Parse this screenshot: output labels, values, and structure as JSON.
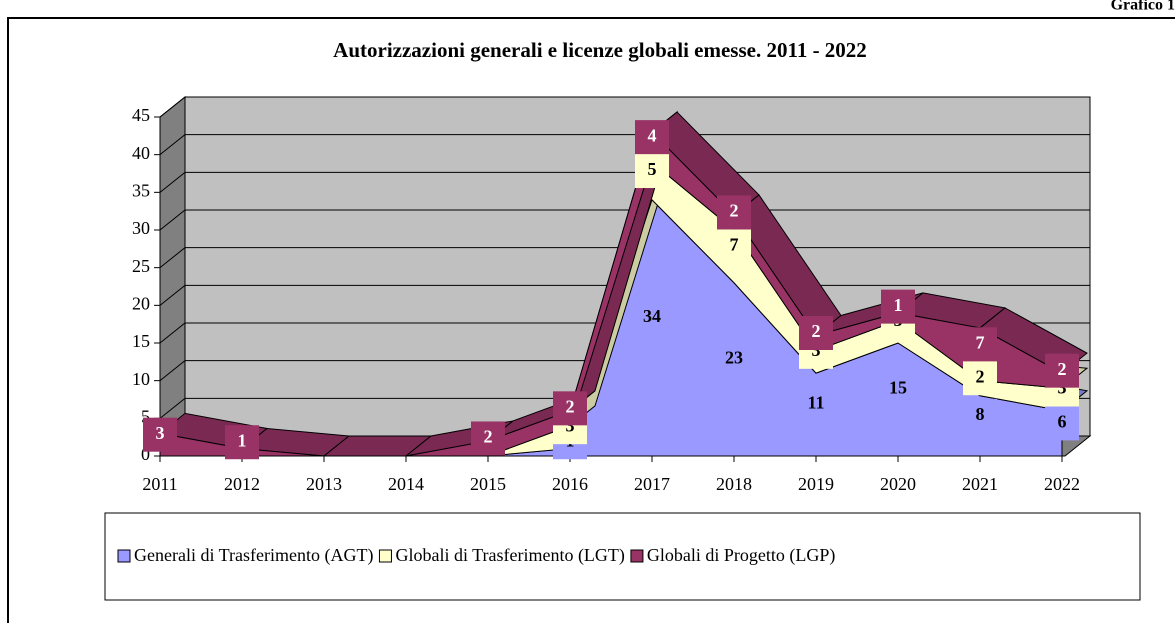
{
  "chart_data": {
    "type": "stacked_area_3d",
    "corner_label": "Grafico 1",
    "title": "Autorizzazioni generali e licenze globali emesse. 2011 - 2022",
    "categories": [
      "2011",
      "2012",
      "2013",
      "2014",
      "2015",
      "2016",
      "2017",
      "2018",
      "2019",
      "2020",
      "2021",
      "2022"
    ],
    "series": [
      {
        "name": "Generali di Trasferimento (AGT)",
        "color": "#9999ff",
        "values": [
          0,
          0,
          0,
          0,
          0,
          1,
          34,
          23,
          11,
          15,
          8,
          6
        ]
      },
      {
        "name": "Globali di Trasferimento (LGT)",
        "color": "#ffffcc",
        "values": [
          0,
          0,
          0,
          0,
          0,
          3,
          5,
          7,
          3,
          3,
          2,
          3
        ]
      },
      {
        "name": "Globali di Progetto (LGP)",
        "color": "#993366",
        "values": [
          3,
          1,
          0,
          0,
          2,
          2,
          4,
          2,
          2,
          1,
          7,
          2
        ]
      }
    ],
    "ylim": [
      0,
      45
    ],
    "yticks": [
      0,
      5,
      10,
      15,
      20,
      25,
      30,
      35,
      40,
      45
    ],
    "grid": true,
    "legend": "bottom"
  }
}
